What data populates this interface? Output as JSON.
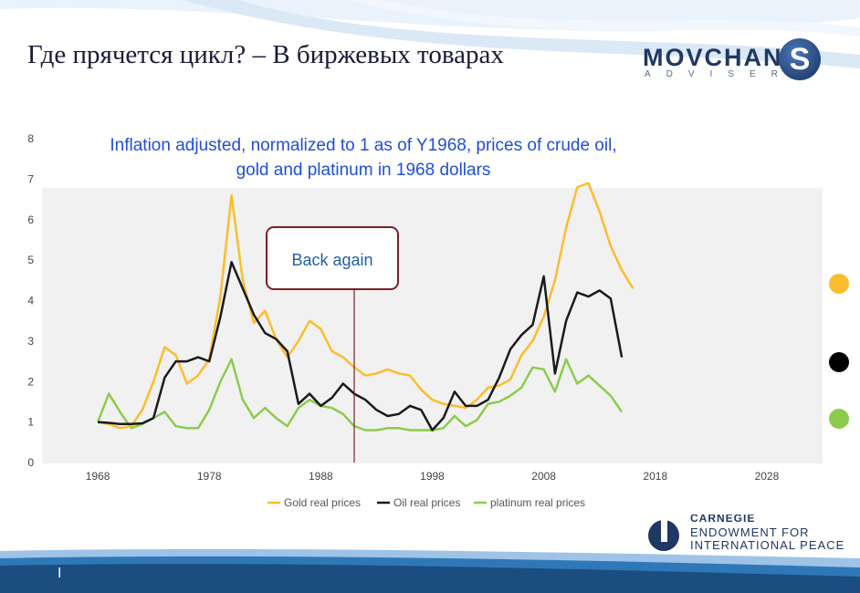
{
  "slide": {
    "title": "Где прячется цикл? – В биржевых товарах",
    "page_number": "I"
  },
  "logo": {
    "name": "MOVCHAN",
    "subtitle": "ADVISER",
    "mark": "S"
  },
  "carnegie": {
    "head": "CARNEGIE",
    "line1": "ENDOWMENT FOR",
    "line2": "INTERNATIONAL PEACE"
  },
  "markers": [
    {
      "name": "gold-marker",
      "color": "#fbbd2e"
    },
    {
      "name": "black-marker",
      "color": "#000000"
    },
    {
      "name": "green-marker",
      "color": "#8ccc4c"
    }
  ],
  "chart_data": {
    "type": "line",
    "title": "Inflation adjusted, normalized to 1 as of Y1968, prices of crude oil, gold and platinum in 1968 dollars",
    "title_lines": [
      "Inflation adjusted, normalized to 1 as of Y1968, prices of crude oil,",
      "gold and platinum in 1968 dollars"
    ],
    "xlabel": "",
    "ylabel": "",
    "xlim": [
      1963,
      2033
    ],
    "ylim": [
      0,
      8
    ],
    "x_ticks": [
      1968,
      1978,
      1988,
      1998,
      2008,
      2018,
      2028
    ],
    "y_ticks": [
      0,
      1,
      2,
      3,
      4,
      5,
      6,
      7,
      8
    ],
    "grid": false,
    "legend_position": "bottom",
    "annotation": {
      "text": "Back again",
      "year": 1991
    },
    "series": [
      {
        "name": "Gold real prices",
        "color": "#fbbd2e",
        "points": [
          [
            1968,
            1.0
          ],
          [
            1969,
            0.95
          ],
          [
            1970,
            0.85
          ],
          [
            1971,
            0.9
          ],
          [
            1972,
            1.3
          ],
          [
            1973,
            2.0
          ],
          [
            1974,
            2.85
          ],
          [
            1975,
            2.65
          ],
          [
            1976,
            1.95
          ],
          [
            1977,
            2.15
          ],
          [
            1978,
            2.55
          ],
          [
            1979,
            4.1
          ],
          [
            1980,
            6.6
          ],
          [
            1981,
            4.5
          ],
          [
            1982,
            3.45
          ],
          [
            1983,
            3.75
          ],
          [
            1984,
            3.05
          ],
          [
            1985,
            2.6
          ],
          [
            1986,
            3.0
          ],
          [
            1987,
            3.5
          ],
          [
            1988,
            3.3
          ],
          [
            1989,
            2.75
          ],
          [
            1990,
            2.6
          ],
          [
            1991,
            2.35
          ],
          [
            1992,
            2.15
          ],
          [
            1993,
            2.2
          ],
          [
            1994,
            2.3
          ],
          [
            1995,
            2.2
          ],
          [
            1996,
            2.15
          ],
          [
            1997,
            1.8
          ],
          [
            1998,
            1.55
          ],
          [
            1999,
            1.45
          ],
          [
            2000,
            1.4
          ],
          [
            2001,
            1.35
          ],
          [
            2002,
            1.55
          ],
          [
            2003,
            1.85
          ],
          [
            2004,
            1.9
          ],
          [
            2005,
            2.05
          ],
          [
            2006,
            2.65
          ],
          [
            2007,
            3.0
          ],
          [
            2008,
            3.6
          ],
          [
            2009,
            4.5
          ],
          [
            2010,
            5.8
          ],
          [
            2011,
            6.8
          ],
          [
            2012,
            6.9
          ],
          [
            2013,
            6.2
          ],
          [
            2014,
            5.35
          ],
          [
            2015,
            4.75
          ],
          [
            2016,
            4.3
          ]
        ]
      },
      {
        "name": "Oil real prices",
        "color": "#1a1a1a",
        "points": [
          [
            1968,
            1.0
          ],
          [
            1969,
            0.98
          ],
          [
            1970,
            0.95
          ],
          [
            1971,
            0.95
          ],
          [
            1972,
            0.97
          ],
          [
            1973,
            1.1
          ],
          [
            1974,
            2.1
          ],
          [
            1975,
            2.5
          ],
          [
            1976,
            2.5
          ],
          [
            1977,
            2.6
          ],
          [
            1978,
            2.5
          ],
          [
            1979,
            3.6
          ],
          [
            1980,
            4.95
          ],
          [
            1981,
            4.3
          ],
          [
            1982,
            3.65
          ],
          [
            1983,
            3.2
          ],
          [
            1984,
            3.05
          ],
          [
            1985,
            2.75
          ],
          [
            1986,
            1.45
          ],
          [
            1987,
            1.7
          ],
          [
            1988,
            1.4
          ],
          [
            1989,
            1.6
          ],
          [
            1990,
            1.95
          ],
          [
            1991,
            1.7
          ],
          [
            1992,
            1.55
          ],
          [
            1993,
            1.3
          ],
          [
            1994,
            1.15
          ],
          [
            1995,
            1.2
          ],
          [
            1996,
            1.4
          ],
          [
            1997,
            1.3
          ],
          [
            1998,
            0.8
          ],
          [
            1999,
            1.1
          ],
          [
            2000,
            1.75
          ],
          [
            2001,
            1.4
          ],
          [
            2002,
            1.4
          ],
          [
            2003,
            1.55
          ],
          [
            2004,
            2.1
          ],
          [
            2005,
            2.8
          ],
          [
            2006,
            3.15
          ],
          [
            2007,
            3.4
          ],
          [
            2008,
            4.6
          ],
          [
            2009,
            2.2
          ],
          [
            2010,
            3.5
          ],
          [
            2011,
            4.2
          ],
          [
            2012,
            4.1
          ],
          [
            2013,
            4.25
          ],
          [
            2014,
            4.05
          ],
          [
            2015,
            2.6
          ]
        ]
      },
      {
        "name": "platinum real prices",
        "color": "#8ccc4c",
        "points": [
          [
            1968,
            1.0
          ],
          [
            1969,
            1.7
          ],
          [
            1970,
            1.25
          ],
          [
            1971,
            0.85
          ],
          [
            1972,
            0.95
          ],
          [
            1973,
            1.1
          ],
          [
            1974,
            1.25
          ],
          [
            1975,
            0.9
          ],
          [
            1976,
            0.85
          ],
          [
            1977,
            0.85
          ],
          [
            1978,
            1.3
          ],
          [
            1979,
            2.0
          ],
          [
            1980,
            2.55
          ],
          [
            1981,
            1.55
          ],
          [
            1982,
            1.1
          ],
          [
            1983,
            1.35
          ],
          [
            1984,
            1.1
          ],
          [
            1985,
            0.9
          ],
          [
            1986,
            1.35
          ],
          [
            1987,
            1.55
          ],
          [
            1988,
            1.4
          ],
          [
            1989,
            1.35
          ],
          [
            1990,
            1.2
          ],
          [
            1991,
            0.9
          ],
          [
            1992,
            0.8
          ],
          [
            1993,
            0.8
          ],
          [
            1994,
            0.85
          ],
          [
            1995,
            0.85
          ],
          [
            1996,
            0.8
          ],
          [
            1997,
            0.8
          ],
          [
            1998,
            0.8
          ],
          [
            1999,
            0.85
          ],
          [
            2000,
            1.15
          ],
          [
            2001,
            0.9
          ],
          [
            2002,
            1.05
          ],
          [
            2003,
            1.45
          ],
          [
            2004,
            1.5
          ],
          [
            2005,
            1.65
          ],
          [
            2006,
            1.85
          ],
          [
            2007,
            2.35
          ],
          [
            2008,
            2.3
          ],
          [
            2009,
            1.75
          ],
          [
            2010,
            2.55
          ],
          [
            2011,
            1.95
          ],
          [
            2012,
            2.15
          ],
          [
            2013,
            1.9
          ],
          [
            2014,
            1.65
          ],
          [
            2015,
            1.25
          ]
        ]
      }
    ]
  }
}
